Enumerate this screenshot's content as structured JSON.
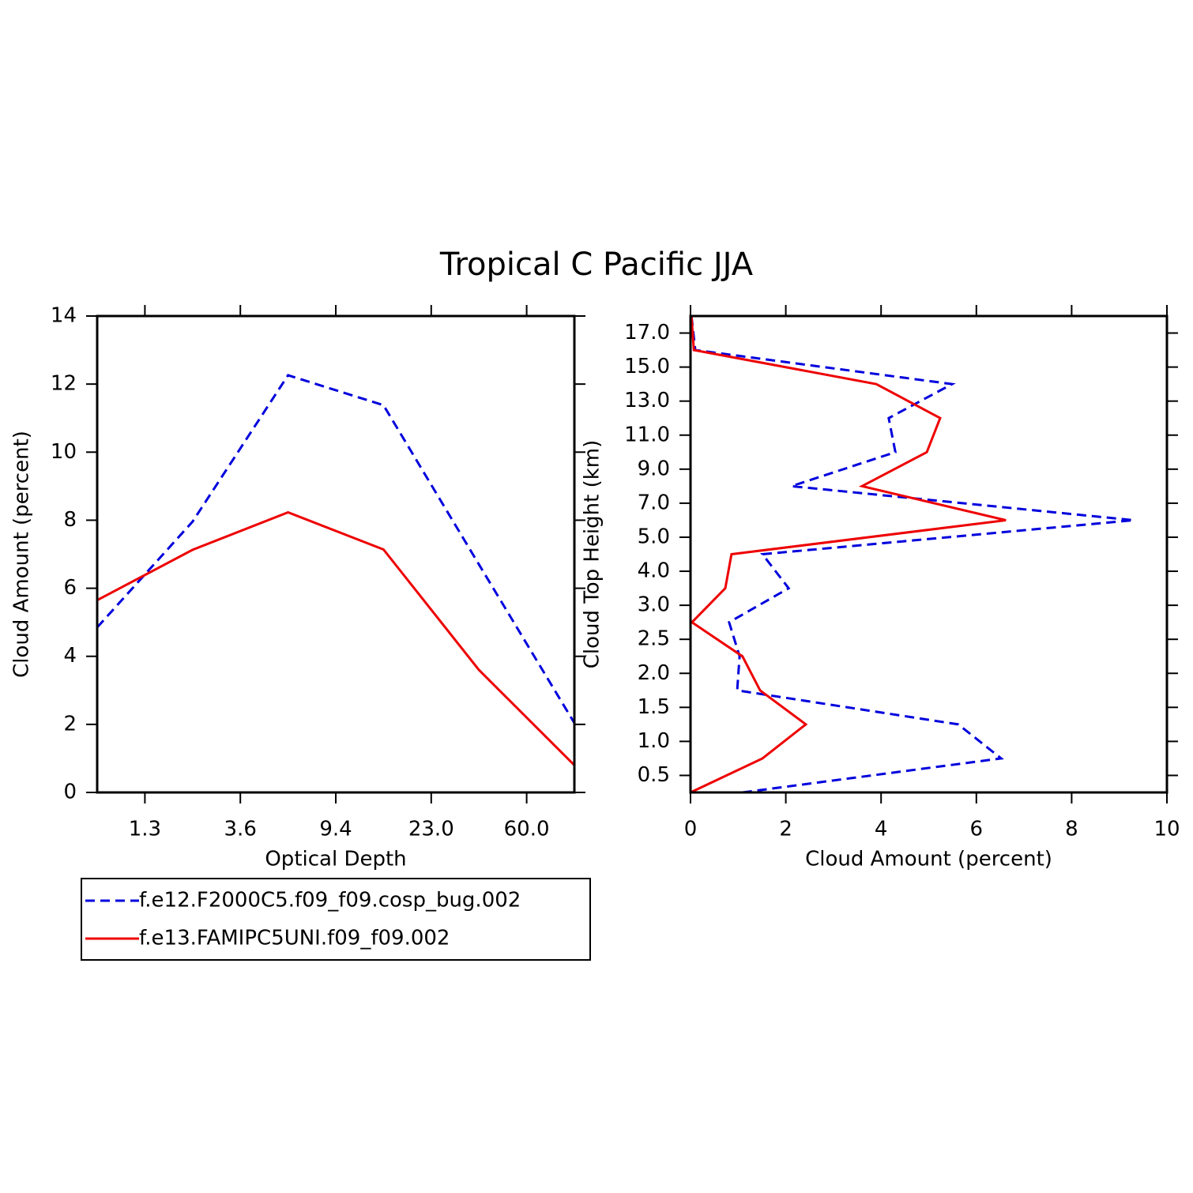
{
  "title": "Tropical C Pacific JJA",
  "chart_data": [
    {
      "type": "line",
      "x_label": "Optical Depth",
      "y_label": "Cloud Amount (percent)",
      "x": [
        0,
        1,
        2,
        3,
        4,
        5
      ],
      "xlim": [
        0,
        5
      ],
      "xticks": [
        {
          "value": 0.5,
          "label": "1.3"
        },
        {
          "value": 1.5,
          "label": "3.6"
        },
        {
          "value": 2.5,
          "label": "9.4"
        },
        {
          "value": 3.5,
          "label": "23.0"
        },
        {
          "value": 4.5,
          "label": "60.0"
        }
      ],
      "ylim": [
        0,
        14
      ],
      "yticks": [
        0,
        2,
        4,
        6,
        8,
        10,
        12,
        14
      ],
      "series": [
        {
          "name": "f.e12.F2000C5.f09_f09.cosp_bug.002",
          "color": "#0000dd",
          "style": "dashed",
          "values": [
            4.85,
            7.96,
            12.26,
            11.38,
            6.7,
            2.04
          ]
        },
        {
          "name": "f.e13.FAMIPC5UNI.f09_f09.002",
          "color": "#ee0000",
          "style": "solid",
          "values": [
            5.65,
            7.13,
            8.23,
            7.14,
            3.6,
            0.8
          ]
        }
      ]
    },
    {
      "type": "line",
      "x_label": "Cloud Amount (percent)",
      "y_label": "Cloud Top Height (km)",
      "y": [
        0,
        1,
        2,
        3,
        4,
        5,
        6,
        7,
        8,
        9,
        10,
        11,
        12,
        13,
        14
      ],
      "xlim": [
        0,
        10
      ],
      "xticks": [
        0,
        2,
        4,
        6,
        8,
        10
      ],
      "ylim": [
        0,
        14
      ],
      "yticks": [
        {
          "value": 0.5,
          "label": "0.5"
        },
        {
          "value": 1.5,
          "label": "1.0"
        },
        {
          "value": 2.5,
          "label": "1.5"
        },
        {
          "value": 3.5,
          "label": "2.0"
        },
        {
          "value": 4.5,
          "label": "2.5"
        },
        {
          "value": 5.5,
          "label": "3.0"
        },
        {
          "value": 6.5,
          "label": "4.0"
        },
        {
          "value": 7.5,
          "label": "5.0"
        },
        {
          "value": 8.5,
          "label": "7.0"
        },
        {
          "value": 9.5,
          "label": "9.0"
        },
        {
          "value": 10.5,
          "label": "11.0"
        },
        {
          "value": 11.5,
          "label": "13.0"
        },
        {
          "value": 12.5,
          "label": "15.0"
        },
        {
          "value": 13.5,
          "label": "17.0"
        }
      ],
      "series": [
        {
          "name": "f.e12.F2000C5.f09_f09.cosp_bug.002",
          "color": "#0000dd",
          "style": "dashed",
          "values": [
            1.09,
            6.52,
            5.62,
            0.98,
            1.03,
            0.81,
            2.06,
            1.51,
            9.3,
            2.12,
            4.3,
            4.16,
            5.49,
            0.1,
            0.02
          ]
        },
        {
          "name": "f.e13.FAMIPC5UNI.f09_f09.002",
          "color": "#ee0000",
          "style": "solid",
          "values": [
            0,
            1.51,
            2.42,
            1.46,
            1.09,
            0.03,
            0.73,
            0.86,
            6.62,
            3.6,
            4.96,
            5.24,
            3.9,
            0.07,
            0.02
          ]
        }
      ]
    }
  ]
}
